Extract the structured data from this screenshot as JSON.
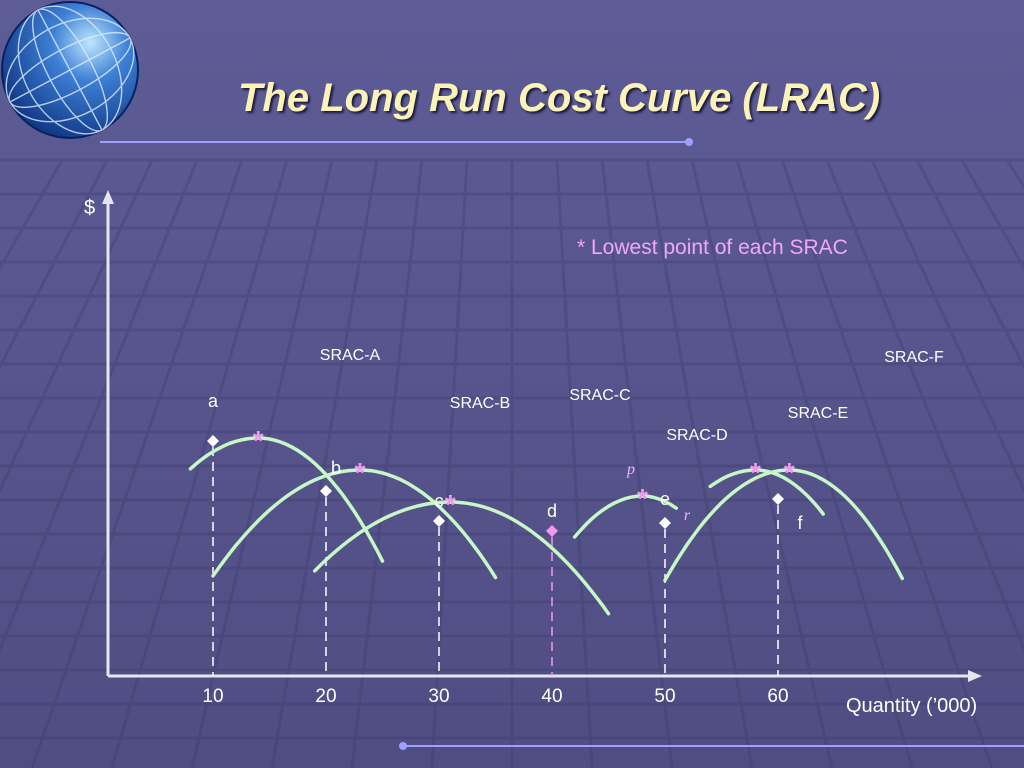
{
  "slide": {
    "title": "The Long Run Cost Curve (LRAC)",
    "note": "* Lowest point of each SRAC",
    "accent_color": "#fbf3b8",
    "curve_color": "#c6f7c6",
    "marker_color": "#ee99ee",
    "globe_icon": "globe-icon"
  },
  "chart_data": {
    "type": "line",
    "y_axis_label": "$",
    "x_axis_label": "Quantity (’000)",
    "x_ticks": [
      10,
      20,
      30,
      40,
      50,
      60
    ],
    "srac_curves": [
      {
        "name": "SRAC-A",
        "min_quantity": 14,
        "range": [
          8,
          25
        ]
      },
      {
        "name": "SRAC-B",
        "min_quantity": 23,
        "range": [
          10,
          35
        ]
      },
      {
        "name": "SRAC-C",
        "min_quantity": 31,
        "range": [
          19,
          45
        ]
      },
      {
        "name": "SRAC-D",
        "min_quantity": 48,
        "range": [
          42,
          51
        ]
      },
      {
        "name": "SRAC-E",
        "min_quantity": 58,
        "range": [
          54,
          64
        ]
      },
      {
        "name": "SRAC-F",
        "min_quantity": 61,
        "range": [
          50,
          71
        ]
      }
    ],
    "lrac_points": [
      {
        "label": "a",
        "quantity": 10
      },
      {
        "label": "b",
        "quantity": 20
      },
      {
        "label": "c",
        "quantity": 30
      },
      {
        "label": "d",
        "quantity": 40
      },
      {
        "label": "e",
        "quantity": 50
      },
      {
        "label": "f",
        "quantity": 60
      }
    ],
    "other_labels": [
      "p",
      "r"
    ],
    "lowest_point_symbol": "*"
  }
}
